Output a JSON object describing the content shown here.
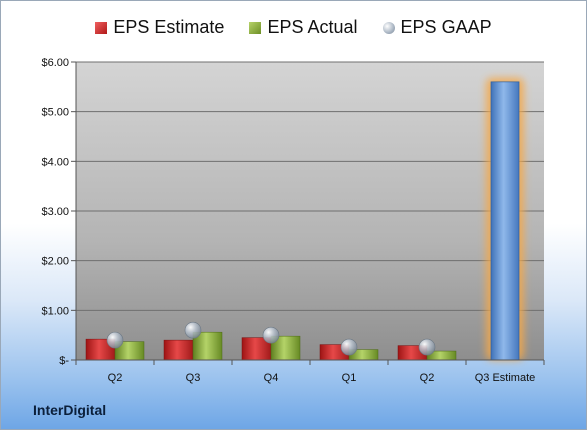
{
  "chart_data": {
    "type": "bar",
    "categories": [
      "Q2",
      "Q3",
      "Q4",
      "Q1",
      "Q2",
      "Q3 Estimate"
    ],
    "series": [
      {
        "name": "EPS Estimate",
        "values": [
          0.42,
          0.4,
          0.45,
          0.31,
          0.29,
          null
        ],
        "color": "#c42a2a"
      },
      {
        "name": "EPS Actual",
        "values": [
          0.37,
          0.56,
          0.48,
          0.21,
          0.18,
          null
        ],
        "color": "#8fb03e"
      },
      {
        "name": "EPS GAAP",
        "marker": "circle",
        "values": [
          0.4,
          0.6,
          0.5,
          0.26,
          0.26,
          null
        ],
        "color": "#a8b4c2"
      },
      {
        "values": [
          null,
          null,
          null,
          null,
          null,
          5.6
        ],
        "color": "#5b8fd0",
        "highlight": "#f5a94a"
      }
    ],
    "ylim": [
      0,
      6
    ],
    "yticks": [
      0,
      1,
      2,
      3,
      4,
      5,
      6
    ],
    "ytick_labels": [
      "$-",
      "$1.00",
      "$2.00",
      "$3.00",
      "$4.00",
      "$5.00",
      "$6.00"
    ],
    "grid": true,
    "legend": "top"
  },
  "brand": "InterDigital"
}
